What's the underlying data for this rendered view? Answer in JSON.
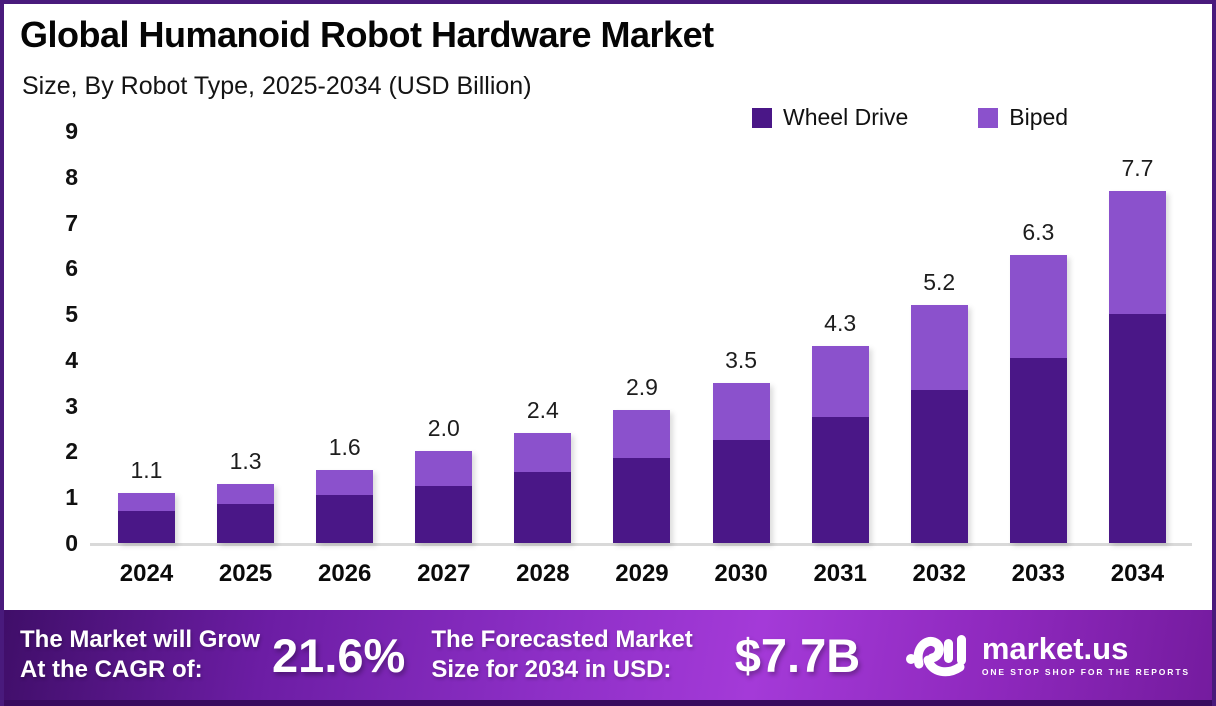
{
  "header": {
    "title": "Global Humanoid Robot Hardware Market",
    "subtitle": "Size, By Robot Type, 2025-2034 (USD Billion)"
  },
  "legend": [
    {
      "label": "Wheel Drive",
      "color": "#4a1787"
    },
    {
      "label": "Biped",
      "color": "#8b51cc"
    }
  ],
  "chart_data": {
    "type": "bar",
    "stacked": true,
    "title": "Global Humanoid Robot Hardware Market",
    "subtitle": "Size, By Robot Type, 2025-2034 (USD Billion)",
    "xlabel": "",
    "ylabel": "",
    "ylim": [
      0,
      9
    ],
    "yticks": [
      0,
      1,
      2,
      3,
      4,
      5,
      6,
      7,
      8,
      9
    ],
    "grid": false,
    "legend_position": "top-right",
    "categories": [
      "2024",
      "2025",
      "2026",
      "2027",
      "2028",
      "2029",
      "2030",
      "2031",
      "2032",
      "2033",
      "2034"
    ],
    "series": [
      {
        "name": "Wheel Drive",
        "color": "#4a1787",
        "values": [
          0.7,
          0.85,
          1.05,
          1.25,
          1.55,
          1.85,
          2.25,
          2.75,
          3.35,
          4.05,
          5.0
        ]
      },
      {
        "name": "Biped",
        "color": "#8b51cc",
        "values": [
          0.4,
          0.45,
          0.55,
          0.75,
          0.85,
          1.05,
          1.25,
          1.55,
          1.85,
          2.25,
          2.7
        ]
      }
    ],
    "totals": [
      1.1,
      1.3,
      1.6,
      2.0,
      2.4,
      2.9,
      3.5,
      4.3,
      5.2,
      6.3,
      7.7
    ]
  },
  "footer": {
    "cagr_label_line1": "The Market will Grow",
    "cagr_label_line2": "At the CAGR of:",
    "cagr_value": "21.6%",
    "forecast_label_line1": "The Forecasted Market",
    "forecast_label_line2": "Size for 2034 in USD:",
    "forecast_value": "$7.7B",
    "brand_name": "market.us",
    "brand_tagline": "ONE STOP SHOP FOR THE REPORTS"
  },
  "colors": {
    "frame_border": "#491a7c",
    "wheel_drive": "#4a1787",
    "biped": "#8b51cc",
    "axis_line": "#d9d9d9",
    "footer_gradient_start": "#3f0e68",
    "footer_gradient_mid": "#a43ad8",
    "footer_gradient_end": "#741b9e",
    "footer_bottom_strip": "#380b5e",
    "text": "#111111"
  }
}
